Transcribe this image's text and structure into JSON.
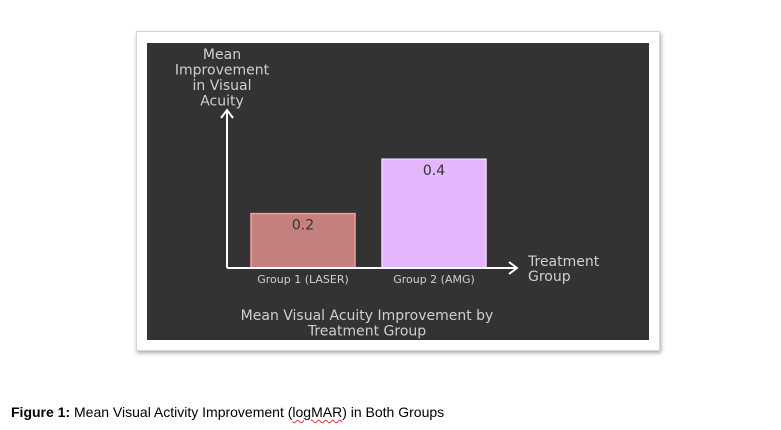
{
  "chart_data": {
    "type": "bar",
    "title": "Mean Visual Acuity Improvement by Treatment Group",
    "ylabel": "Mean Improvement in Visual Acuity",
    "xlabel": "Treatment Group",
    "categories": [
      "Group 1 (LASER)",
      "Group 2 (AMG)"
    ],
    "values": [
      0.2,
      0.4
    ],
    "data_labels": [
      "0.2",
      "0.4"
    ],
    "ylim": [
      0,
      0.5
    ],
    "grid": false,
    "colors": {
      "background": "#333333",
      "axis": "#ffffff",
      "text": "#cfcfcf",
      "data_label": "#333333",
      "bars": [
        {
          "fill": "#c47f7f",
          "stroke": "#ff9a9a"
        },
        {
          "fill": "#e5b6fb",
          "stroke": "#f1d4ff"
        }
      ]
    }
  },
  "caption": {
    "label": "Figure 1:",
    "text_before": " Mean Visual Activity Improvement (",
    "underlined": "logMAR",
    "text_after": ") in Both Groups"
  }
}
